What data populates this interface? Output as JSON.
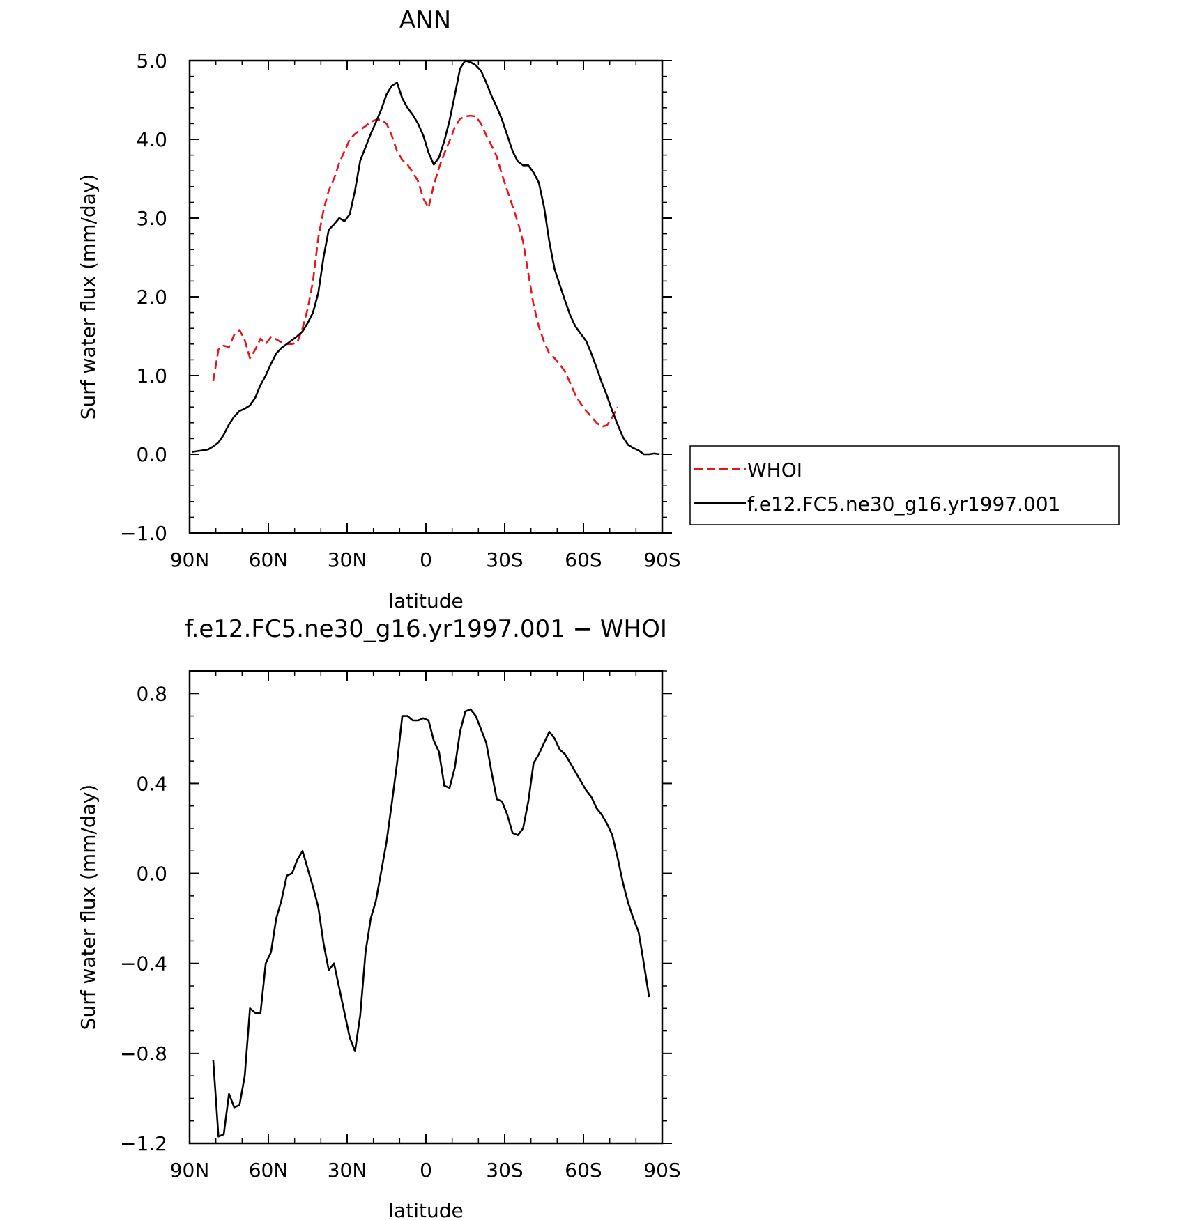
{
  "chart_data": [
    {
      "type": "line",
      "title": "ANN",
      "xlabel": "latitude",
      "ylabel": "Surf water flux (mm/day)",
      "xlim": [
        90,
        -90
      ],
      "ylim": [
        -1.0,
        5.0
      ],
      "x_ticks": [
        90,
        60,
        30,
        0,
        -30,
        -60,
        -90
      ],
      "x_tick_labels": [
        "90N",
        "60N",
        "30N",
        "0",
        "30S",
        "60S",
        "90S"
      ],
      "y_ticks": [
        -1.0,
        0.0,
        1.0,
        2.0,
        3.0,
        4.0,
        5.0
      ],
      "y_tick_labels": [
        "−1.0",
        "0.0",
        "1.0",
        "2.0",
        "3.0",
        "4.0",
        "5.0"
      ],
      "grid": false,
      "legend_position": "right",
      "series": [
        {
          "name": "WHOI",
          "color": "#e8141c",
          "dash": "dashed",
          "points": [
            [
              81,
              0.93
            ],
            [
              79,
              1.33
            ],
            [
              77,
              1.38
            ],
            [
              75,
              1.36
            ],
            [
              73,
              1.52
            ],
            [
              71,
              1.58
            ],
            [
              69,
              1.45
            ],
            [
              67,
              1.22
            ],
            [
              65,
              1.33
            ],
            [
              63,
              1.47
            ],
            [
              61,
              1.4
            ],
            [
              59,
              1.49
            ],
            [
              57,
              1.46
            ],
            [
              55,
              1.42
            ],
            [
              53,
              1.4
            ],
            [
              51,
              1.4
            ],
            [
              49,
              1.42
            ],
            [
              47,
              1.6
            ],
            [
              45,
              1.85
            ],
            [
              43,
              2.2
            ],
            [
              41,
              2.75
            ],
            [
              39,
              3.1
            ],
            [
              37,
              3.35
            ],
            [
              35,
              3.5
            ],
            [
              33,
              3.7
            ],
            [
              31,
              3.85
            ],
            [
              29,
              4.0
            ],
            [
              27,
              4.07
            ],
            [
              25,
              4.12
            ],
            [
              23,
              4.17
            ],
            [
              21,
              4.22
            ],
            [
              19,
              4.25
            ],
            [
              17,
              4.25
            ],
            [
              15,
              4.2
            ],
            [
              13,
              4.05
            ],
            [
              11,
              3.85
            ],
            [
              9,
              3.74
            ],
            [
              7,
              3.68
            ],
            [
              5,
              3.58
            ],
            [
              3,
              3.47
            ],
            [
              1,
              3.25
            ],
            [
              -1,
              3.13
            ],
            [
              -3,
              3.42
            ],
            [
              -5,
              3.64
            ],
            [
              -7,
              3.82
            ],
            [
              -9,
              3.98
            ],
            [
              -11,
              4.15
            ],
            [
              -13,
              4.26
            ],
            [
              -15,
              4.29
            ],
            [
              -17,
              4.3
            ],
            [
              -19,
              4.29
            ],
            [
              -21,
              4.2
            ],
            [
              -23,
              4.05
            ],
            [
              -25,
              3.92
            ],
            [
              -27,
              3.78
            ],
            [
              -29,
              3.55
            ],
            [
              -31,
              3.35
            ],
            [
              -33,
              3.15
            ],
            [
              -35,
              2.95
            ],
            [
              -37,
              2.7
            ],
            [
              -39,
              2.3
            ],
            [
              -41,
              1.9
            ],
            [
              -43,
              1.62
            ],
            [
              -45,
              1.43
            ],
            [
              -47,
              1.28
            ],
            [
              -49,
              1.22
            ],
            [
              -51,
              1.14
            ],
            [
              -53,
              1.05
            ],
            [
              -55,
              0.9
            ],
            [
              -57,
              0.75
            ],
            [
              -59,
              0.64
            ],
            [
              -61,
              0.55
            ],
            [
              -63,
              0.48
            ],
            [
              -65,
              0.4
            ],
            [
              -67,
              0.35
            ],
            [
              -69,
              0.37
            ],
            [
              -71,
              0.47
            ],
            [
              -73,
              0.6
            ]
          ]
        },
        {
          "name": "f.e12.FC5.ne30_g16.yr1997.001",
          "color": "#000000",
          "dash": "solid",
          "points": [
            [
              89,
              0.03
            ],
            [
              87,
              0.04
            ],
            [
              85,
              0.05
            ],
            [
              83,
              0.06
            ],
            [
              81,
              0.1
            ],
            [
              79,
              0.15
            ],
            [
              77,
              0.25
            ],
            [
              75,
              0.38
            ],
            [
              73,
              0.48
            ],
            [
              71,
              0.55
            ],
            [
              69,
              0.58
            ],
            [
              67,
              0.62
            ],
            [
              65,
              0.72
            ],
            [
              63,
              0.88
            ],
            [
              61,
              1.0
            ],
            [
              59,
              1.15
            ],
            [
              57,
              1.28
            ],
            [
              55,
              1.35
            ],
            [
              53,
              1.4
            ],
            [
              51,
              1.45
            ],
            [
              49,
              1.5
            ],
            [
              47,
              1.56
            ],
            [
              45,
              1.67
            ],
            [
              43,
              1.8
            ],
            [
              41,
              2.05
            ],
            [
              39,
              2.5
            ],
            [
              37,
              2.85
            ],
            [
              35,
              2.92
            ],
            [
              33,
              3.0
            ],
            [
              31,
              2.96
            ],
            [
              29,
              3.05
            ],
            [
              27,
              3.35
            ],
            [
              25,
              3.73
            ],
            [
              23,
              3.9
            ],
            [
              21,
              4.07
            ],
            [
              19,
              4.22
            ],
            [
              17,
              4.38
            ],
            [
              15,
              4.57
            ],
            [
              13,
              4.68
            ],
            [
              11,
              4.72
            ],
            [
              9,
              4.52
            ],
            [
              7,
              4.4
            ],
            [
              5,
              4.31
            ],
            [
              3,
              4.2
            ],
            [
              1,
              4.05
            ],
            [
              -1,
              3.83
            ],
            [
              -3,
              3.68
            ],
            [
              -5,
              3.77
            ],
            [
              -7,
              3.98
            ],
            [
              -9,
              4.24
            ],
            [
              -11,
              4.56
            ],
            [
              -13,
              4.9
            ],
            [
              -15,
              5.0
            ],
            [
              -17,
              4.98
            ],
            [
              -19,
              4.94
            ],
            [
              -21,
              4.87
            ],
            [
              -23,
              4.72
            ],
            [
              -25,
              4.55
            ],
            [
              -27,
              4.41
            ],
            [
              -29,
              4.25
            ],
            [
              -31,
              4.05
            ],
            [
              -33,
              3.85
            ],
            [
              -35,
              3.72
            ],
            [
              -37,
              3.67
            ],
            [
              -39,
              3.67
            ],
            [
              -41,
              3.58
            ],
            [
              -43,
              3.45
            ],
            [
              -45,
              3.14
            ],
            [
              -47,
              2.7
            ],
            [
              -49,
              2.35
            ],
            [
              -51,
              2.15
            ],
            [
              -53,
              1.95
            ],
            [
              -55,
              1.76
            ],
            [
              -57,
              1.62
            ],
            [
              -59,
              1.53
            ],
            [
              -61,
              1.44
            ],
            [
              -63,
              1.28
            ],
            [
              -65,
              1.1
            ],
            [
              -67,
              0.91
            ],
            [
              -69,
              0.74
            ],
            [
              -71,
              0.55
            ],
            [
              -73,
              0.38
            ],
            [
              -75,
              0.22
            ],
            [
              -77,
              0.12
            ],
            [
              -79,
              0.08
            ],
            [
              -81,
              0.05
            ],
            [
              -83,
              0.0
            ],
            [
              -85,
              0.0
            ],
            [
              -87,
              0.01
            ],
            [
              -89,
              0.0
            ]
          ]
        }
      ]
    },
    {
      "type": "line",
      "title": "f.e12.FC5.ne30_g16.yr1997.001 − WHOI",
      "xlabel": "latitude",
      "ylabel": "Surf water flux (mm/day)",
      "xlim": [
        90,
        -90
      ],
      "ylim": [
        -1.2,
        0.9
      ],
      "x_ticks": [
        90,
        60,
        30,
        0,
        -30,
        -60,
        -90
      ],
      "x_tick_labels": [
        "90N",
        "60N",
        "30N",
        "0",
        "30S",
        "60S",
        "90S"
      ],
      "y_ticks": [
        -1.2,
        -0.8,
        -0.4,
        0.0,
        0.4,
        0.8
      ],
      "y_tick_labels": [
        "−1.2",
        "−0.8",
        "−0.4",
        "0.0",
        "0.4",
        "0.8"
      ],
      "grid": false,
      "series": [
        {
          "color": "#000000",
          "dash": "solid",
          "points": [
            [
              81,
              -0.83
            ],
            [
              79,
              -1.17
            ],
            [
              77,
              -1.16
            ],
            [
              75,
              -0.98
            ],
            [
              73,
              -1.04
            ],
            [
              71,
              -1.03
            ],
            [
              69,
              -0.9
            ],
            [
              67,
              -0.6
            ],
            [
              65,
              -0.62
            ],
            [
              63,
              -0.62
            ],
            [
              61,
              -0.4
            ],
            [
              59,
              -0.35
            ],
            [
              57,
              -0.2
            ],
            [
              55,
              -0.12
            ],
            [
              53,
              -0.01
            ],
            [
              51,
              0.0
            ],
            [
              49,
              0.06
            ],
            [
              47,
              0.1
            ],
            [
              45,
              0.02
            ],
            [
              43,
              -0.06
            ],
            [
              41,
              -0.15
            ],
            [
              39,
              -0.31
            ],
            [
              37,
              -0.43
            ],
            [
              35,
              -0.4
            ],
            [
              33,
              -0.51
            ],
            [
              31,
              -0.62
            ],
            [
              29,
              -0.73
            ],
            [
              27,
              -0.79
            ],
            [
              25,
              -0.63
            ],
            [
              23,
              -0.35
            ],
            [
              21,
              -0.2
            ],
            [
              19,
              -0.12
            ],
            [
              17,
              0.01
            ],
            [
              15,
              0.14
            ],
            [
              13,
              0.31
            ],
            [
              11,
              0.49
            ],
            [
              9,
              0.7
            ],
            [
              7,
              0.7
            ],
            [
              5,
              0.68
            ],
            [
              3,
              0.68
            ],
            [
              1,
              0.69
            ],
            [
              -1,
              0.68
            ],
            [
              -3,
              0.59
            ],
            [
              -5,
              0.54
            ],
            [
              -7,
              0.39
            ],
            [
              -9,
              0.38
            ],
            [
              -11,
              0.47
            ],
            [
              -13,
              0.63
            ],
            [
              -15,
              0.72
            ],
            [
              -17,
              0.73
            ],
            [
              -19,
              0.7
            ],
            [
              -21,
              0.64
            ],
            [
              -23,
              0.58
            ],
            [
              -25,
              0.45
            ],
            [
              -27,
              0.33
            ],
            [
              -29,
              0.32
            ],
            [
              -31,
              0.26
            ],
            [
              -33,
              0.18
            ],
            [
              -35,
              0.17
            ],
            [
              -37,
              0.2
            ],
            [
              -39,
              0.32
            ],
            [
              -41,
              0.49
            ],
            [
              -43,
              0.53
            ],
            [
              -45,
              0.58
            ],
            [
              -47,
              0.63
            ],
            [
              -49,
              0.6
            ],
            [
              -51,
              0.55
            ],
            [
              -53,
              0.53
            ],
            [
              -55,
              0.49
            ],
            [
              -57,
              0.45
            ],
            [
              -59,
              0.41
            ],
            [
              -61,
              0.37
            ],
            [
              -63,
              0.34
            ],
            [
              -65,
              0.29
            ],
            [
              -67,
              0.26
            ],
            [
              -69,
              0.22
            ],
            [
              -71,
              0.17
            ],
            [
              -73,
              0.07
            ],
            [
              -75,
              -0.04
            ],
            [
              -77,
              -0.13
            ],
            [
              -79,
              -0.2
            ],
            [
              -81,
              -0.26
            ],
            [
              -83,
              -0.4
            ],
            [
              -85,
              -0.55
            ]
          ]
        }
      ]
    }
  ]
}
